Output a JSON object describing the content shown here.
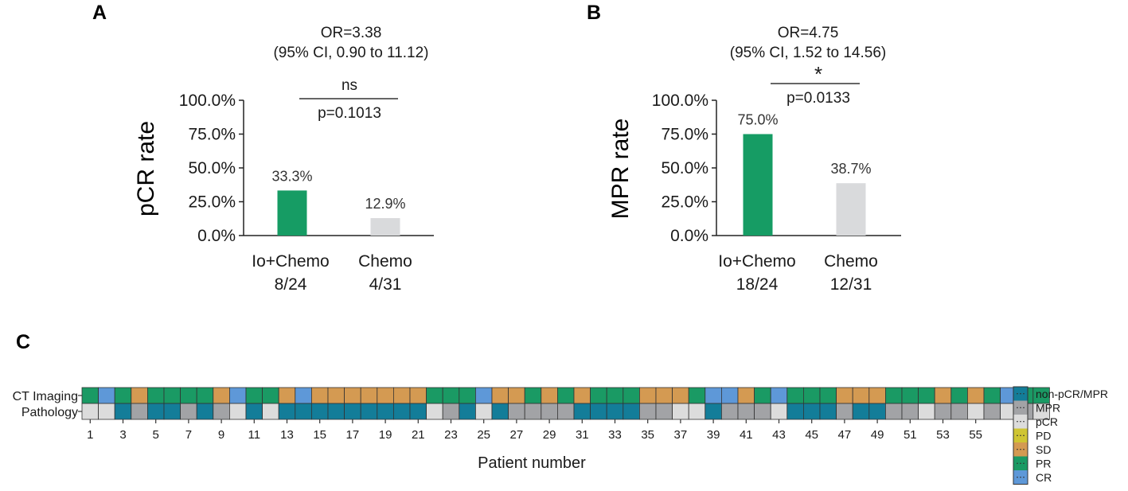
{
  "chart_data": [
    {
      "panel": "A",
      "type": "bar",
      "or_line1": "OR=3.38",
      "or_line2": "(95% CI, 0.90 to 11.12)",
      "ylabel": "pCR rate",
      "ylim": [
        0,
        100
      ],
      "yticks": [
        "0.0%",
        "25.0%",
        "50.0%",
        "75.0%",
        "100.0%"
      ],
      "categories": [
        "Io+Chemo",
        "Chemo"
      ],
      "counts": [
        "8/24",
        "4/31"
      ],
      "values": [
        33.3,
        12.9
      ],
      "value_labels": [
        "33.3%",
        "12.9%"
      ],
      "colors": [
        "#169c64",
        "#d9dadc"
      ],
      "sig_symbol": "ns",
      "p_value": "p=0.1013"
    },
    {
      "panel": "B",
      "type": "bar",
      "or_line1": "OR=4.75",
      "or_line2": "(95% CI, 1.52 to 14.56)",
      "ylabel": "MPR rate",
      "ylim": [
        0,
        100
      ],
      "yticks": [
        "0.0%",
        "25.0%",
        "50.0%",
        "75.0%",
        "100.0%"
      ],
      "categories": [
        "Io+Chemo",
        "Chemo"
      ],
      "counts": [
        "18/24",
        "12/31"
      ],
      "values": [
        75.0,
        38.7
      ],
      "value_labels": [
        "75.0%",
        "38.7%"
      ],
      "colors": [
        "#169c64",
        "#d9dadc"
      ],
      "sig_symbol": "*",
      "p_value": "p=0.0133"
    },
    {
      "panel": "C",
      "type": "heatmap",
      "rows": [
        "CT Imaging",
        "Pathology"
      ],
      "xlabel": "Patient number",
      "xticks": [
        "1",
        "3",
        "5",
        "7",
        "9",
        "11",
        "13",
        "15",
        "17",
        "19",
        "21",
        "23",
        "25",
        "27",
        "29",
        "31",
        "33",
        "35",
        "37",
        "39",
        "41",
        "43",
        "45",
        "47",
        "49",
        "51",
        "53",
        "55"
      ],
      "ct": [
        "PR",
        "CR",
        "PR",
        "SD",
        "PR",
        "PR",
        "PR",
        "PR",
        "SD",
        "CR",
        "PR",
        "PR",
        "SD",
        "CR",
        "SD",
        "SD",
        "SD",
        "SD",
        "SD",
        "SD",
        "SD",
        "PR",
        "PR",
        "PR",
        "CR",
        "SD",
        "SD",
        "PR",
        "SD",
        "PR",
        "SD",
        "PR",
        "PR",
        "PR",
        "SD",
        "SD",
        "SD",
        "PR",
        "CR",
        "CR",
        "SD",
        "PR",
        "CR",
        "PR",
        "PR",
        "PR",
        "SD",
        "SD",
        "SD",
        "PR",
        "PR",
        "PR",
        "SD",
        "PR",
        "SD",
        "PR",
        "CR",
        "PR",
        "PR"
      ],
      "pathology": [
        "pCR",
        "pCR",
        "non-pCR/MPR",
        "MPR",
        "non-pCR/MPR",
        "non-pCR/MPR",
        "MPR",
        "non-pCR/MPR",
        "MPR",
        "pCR",
        "non-pCR/MPR",
        "pCR",
        "non-pCR/MPR",
        "non-pCR/MPR",
        "non-pCR/MPR",
        "non-pCR/MPR",
        "non-pCR/MPR",
        "non-pCR/MPR",
        "non-pCR/MPR",
        "non-pCR/MPR",
        "non-pCR/MPR",
        "pCR",
        "MPR",
        "non-pCR/MPR",
        "pCR",
        "non-pCR/MPR",
        "MPR",
        "MPR",
        "MPR",
        "MPR",
        "non-pCR/MPR",
        "non-pCR/MPR",
        "non-pCR/MPR",
        "non-pCR/MPR",
        "MPR",
        "MPR",
        "pCR",
        "pCR",
        "non-pCR/MPR",
        "MPR",
        "MPR",
        "MPR",
        "pCR",
        "non-pCR/MPR",
        "non-pCR/MPR",
        "non-pCR/MPR",
        "MPR",
        "non-pCR/MPR",
        "non-pCR/MPR",
        "MPR",
        "MPR",
        "pCR",
        "MPR",
        "MPR",
        "pCR",
        "MPR",
        "pCR",
        "MPR",
        "pCR"
      ],
      "legend": [
        {
          "label": "non-pCR/MPR",
          "color": "#137d99"
        },
        {
          "label": "MPR",
          "color": "#a2a3a6"
        },
        {
          "label": "pCR",
          "color": "#dcdcdc"
        },
        {
          "label": "PD",
          "color": "#cfc533"
        },
        {
          "label": "SD",
          "color": "#d49a52"
        },
        {
          "label": "PR",
          "color": "#1a9a64"
        },
        {
          "label": "CR",
          "color": "#5e98d8"
        }
      ]
    }
  ]
}
